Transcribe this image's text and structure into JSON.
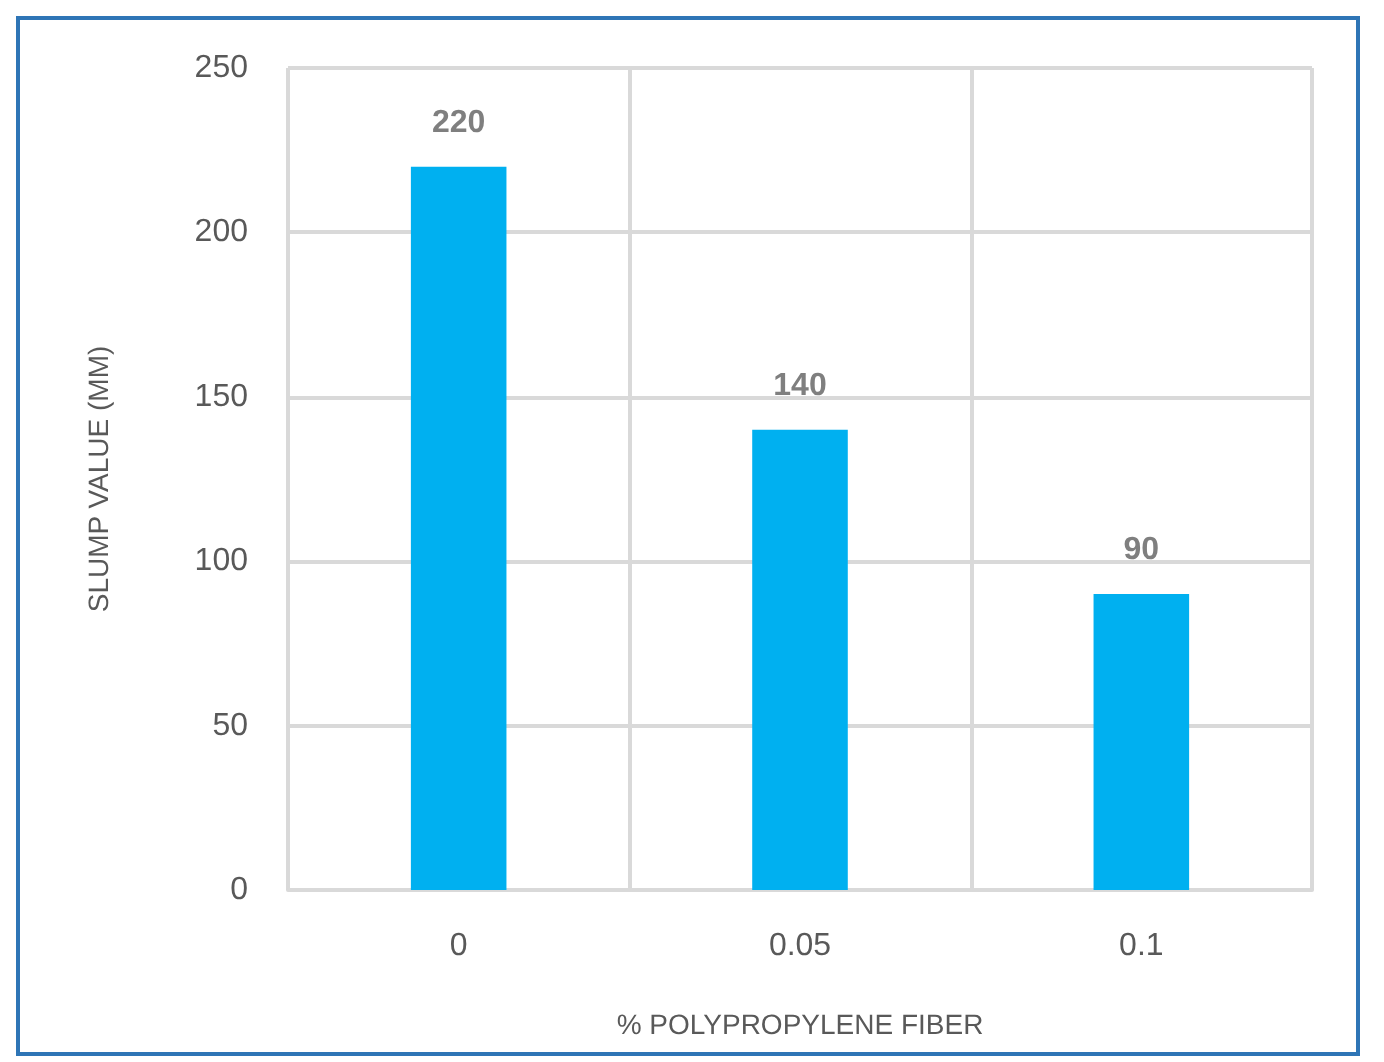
{
  "chart_data": {
    "type": "bar",
    "xlabel": "% POLYPROPYLENE FIBER",
    "ylabel": "SLUMP VALUE (MM)",
    "categories": [
      "0",
      "0.05",
      "0.1"
    ],
    "values": [
      220,
      140,
      90
    ],
    "color": "#00b0f0",
    "ylim": [
      0,
      250
    ],
    "yticks": [
      0,
      50,
      100,
      150,
      200,
      250
    ],
    "grid": true,
    "data_labels": true
  }
}
